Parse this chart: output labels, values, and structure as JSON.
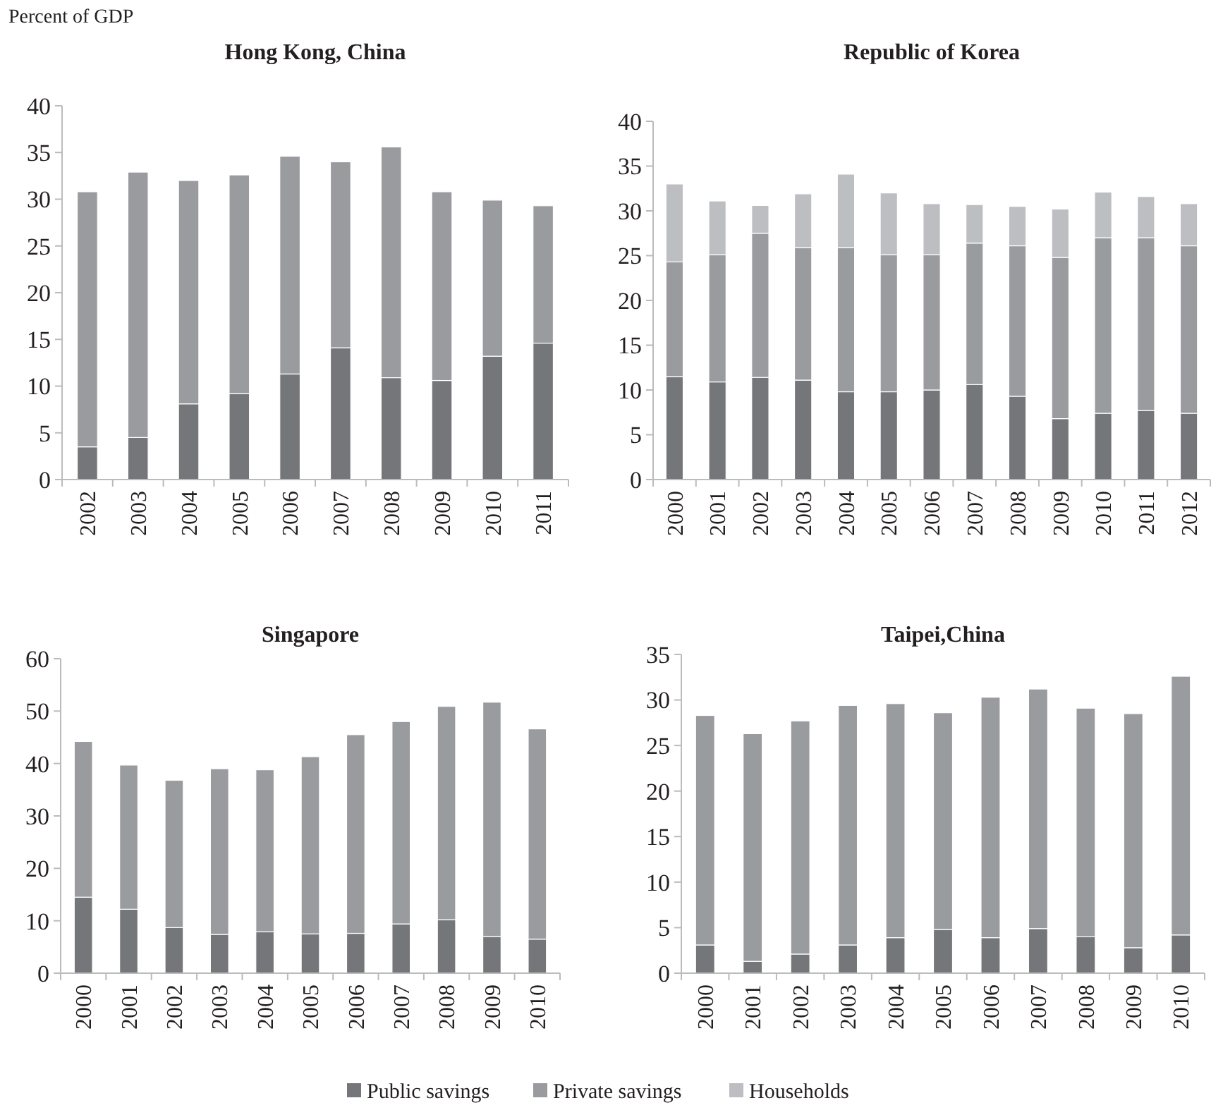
{
  "chart_data": [
    {
      "type": "bar",
      "title": "Hong Kong, China",
      "ylabel": "Percent of GDP",
      "stacked": true,
      "categories": [
        "2002",
        "2003",
        "2004",
        "2005",
        "2006",
        "2007",
        "2008",
        "2009",
        "2010",
        "2011"
      ],
      "ylim": [
        0,
        40
      ],
      "yticks": [
        0,
        5,
        10,
        15,
        20,
        25,
        30,
        35,
        40
      ],
      "series": [
        {
          "color": "#75767a",
          "values": [
            3.5,
            4.5,
            8.1,
            9.2,
            11.3,
            14.1,
            10.9,
            10.6,
            13.2,
            14.6
          ]
        },
        {
          "color": "#9a9b9f",
          "values": [
            27.3,
            28.4,
            23.9,
            23.4,
            23.3,
            19.9,
            24.7,
            20.2,
            16.7,
            14.7
          ]
        }
      ]
    },
    {
      "type": "bar",
      "title": "Republic of Korea",
      "stacked": true,
      "categories": [
        "2000",
        "2001",
        "2002",
        "2003",
        "2004",
        "2005",
        "2006",
        "2007",
        "2008",
        "2009",
        "2010",
        "2011",
        "2012"
      ],
      "ylim": [
        0,
        40
      ],
      "yticks": [
        0,
        5,
        10,
        15,
        20,
        25,
        30,
        35,
        40
      ],
      "legend": "bottom",
      "series": [
        {
          "name": "Public savings",
          "color": "#75767a",
          "values": [
            11.5,
            10.9,
            11.4,
            11.1,
            9.8,
            9.8,
            10.0,
            10.6,
            9.3,
            6.8,
            7.4,
            7.7,
            7.4
          ]
        },
        {
          "name": "Private savings",
          "color": "#9a9b9f",
          "values": [
            12.8,
            14.2,
            16.1,
            14.8,
            16.1,
            15.3,
            15.1,
            15.8,
            16.8,
            18.0,
            19.6,
            19.3,
            18.7
          ]
        },
        {
          "name": "Households",
          "color": "#bdbec2",
          "values": [
            8.7,
            6.0,
            3.1,
            6.0,
            8.2,
            6.9,
            5.7,
            4.3,
            4.4,
            5.4,
            5.1,
            4.6,
            4.7
          ]
        }
      ]
    },
    {
      "type": "bar",
      "title": "Singapore",
      "stacked": true,
      "categories": [
        "2000",
        "2001",
        "2002",
        "2003",
        "2004",
        "2005",
        "2006",
        "2007",
        "2008",
        "2009",
        "2010"
      ],
      "ylim": [
        0,
        60
      ],
      "yticks": [
        0,
        10,
        20,
        30,
        40,
        50,
        60
      ],
      "series": [
        {
          "color": "#75767a",
          "values": [
            14.5,
            12.2,
            8.7,
            7.4,
            7.9,
            7.5,
            7.6,
            9.4,
            10.2,
            7.0,
            6.5
          ]
        },
        {
          "color": "#9a9b9f",
          "values": [
            29.7,
            27.5,
            28.1,
            31.6,
            30.9,
            33.8,
            37.9,
            38.6,
            40.7,
            44.7,
            40.1
          ]
        }
      ]
    },
    {
      "type": "bar",
      "title": "Taipei,China",
      "stacked": true,
      "categories": [
        "2000",
        "2001",
        "2002",
        "2003",
        "2004",
        "2005",
        "2006",
        "2007",
        "2008",
        "2009",
        "2010"
      ],
      "ylim": [
        0,
        35
      ],
      "yticks": [
        0,
        5,
        10,
        15,
        20,
        25,
        30,
        35
      ],
      "series": [
        {
          "color": "#75767a",
          "values": [
            3.1,
            1.3,
            2.1,
            3.1,
            3.9,
            4.8,
            3.9,
            4.9,
            4.0,
            2.8,
            4.2
          ]
        },
        {
          "color": "#9a9b9f",
          "values": [
            25.2,
            25.0,
            25.6,
            26.3,
            25.7,
            23.8,
            26.4,
            26.3,
            25.1,
            25.7,
            28.4
          ]
        }
      ]
    }
  ]
}
